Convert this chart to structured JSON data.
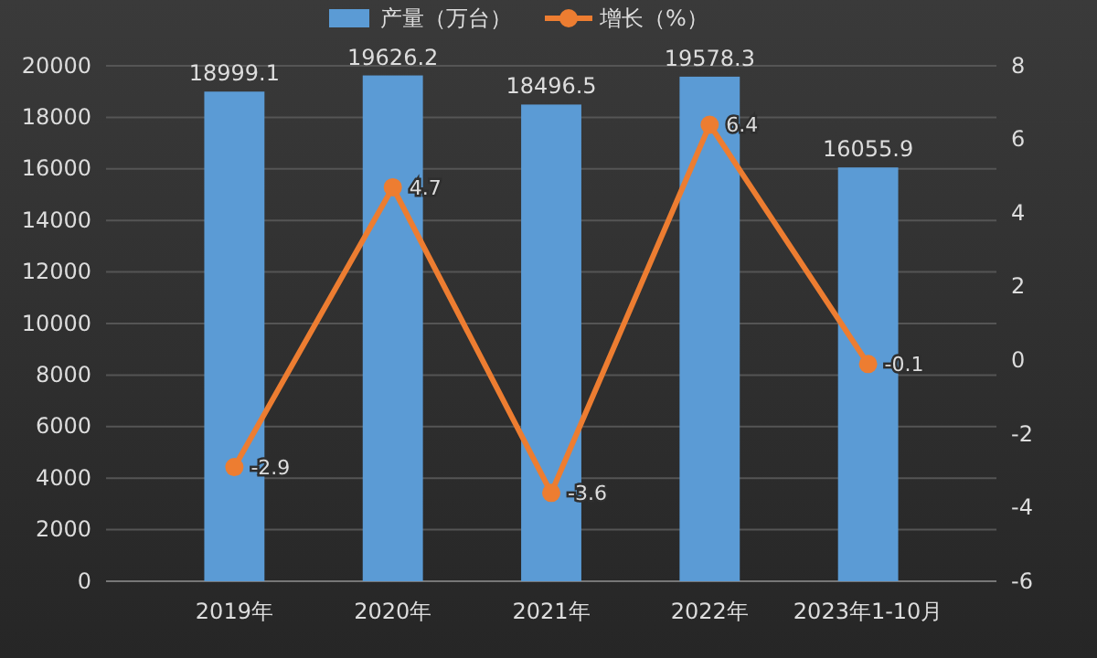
{
  "chart_data": {
    "type": "bar",
    "categories": [
      "2019年",
      "2020年",
      "2021年",
      "2022年",
      "2023年1-10月"
    ],
    "series": [
      {
        "name": "产量（万台）",
        "color": "#5b9bd5",
        "values": [
          18999.1,
          19626.2,
          18496.5,
          19578.3,
          16055.9
        ]
      },
      {
        "name": "增长（%）",
        "type": "line",
        "axis": "y2",
        "color": "#ed7d31",
        "values": [
          -2.9,
          4.7,
          -3.6,
          6.4,
          -0.1
        ]
      }
    ],
    "ylim": [
      0,
      20000
    ],
    "yticks": [
      0,
      2000,
      4000,
      6000,
      8000,
      10000,
      12000,
      14000,
      16000,
      18000,
      20000
    ],
    "y2lim": [
      -6,
      8
    ],
    "y2ticks": [
      -6,
      -4,
      -2,
      0,
      2,
      4,
      6,
      8
    ],
    "grid": "y",
    "legend": "top",
    "marker": "circle",
    "data_labels": true
  }
}
